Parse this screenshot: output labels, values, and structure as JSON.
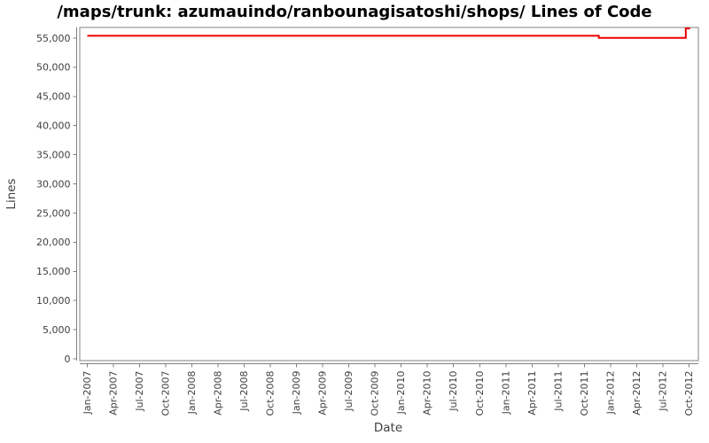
{
  "chart_data": {
    "type": "line",
    "title": "/maps/trunk: azumauindo/ranbounagisatoshi/shops/ Lines of Code",
    "xlabel": "Date",
    "ylabel": "Lines",
    "grid": false,
    "legend": false,
    "background_color": "#ffffff",
    "line_color": "#ee0000",
    "axis_color": "#808080",
    "tick_label_color": "#404040",
    "title_color": "#000000",
    "ylim": [
      0,
      56800
    ],
    "y_ticks": [
      0,
      5000,
      10000,
      15000,
      20000,
      25000,
      30000,
      35000,
      40000,
      45000,
      50000,
      55000
    ],
    "x_tick_labels": [
      "Jan-2007",
      "Apr-2007",
      "Jul-2007",
      "Oct-2007",
      "Jan-2008",
      "Apr-2008",
      "Jul-2008",
      "Oct-2008",
      "Jan-2009",
      "Apr-2009",
      "Jul-2009",
      "Oct-2009",
      "Jan-2010",
      "Apr-2010",
      "Jul-2010",
      "Oct-2010",
      "Jan-2011",
      "Apr-2011",
      "Jul-2011",
      "Oct-2011",
      "Jan-2012",
      "Apr-2012",
      "Jul-2012",
      "Oct-2012"
    ],
    "series": [
      {
        "name": "Lines of Code",
        "color": "#ee0000",
        "points": [
          {
            "date": "2007-01-01",
            "loc": 55400
          },
          {
            "date": "2011-11-21",
            "loc": 55400
          },
          {
            "date": "2011-11-21",
            "loc": 55050
          },
          {
            "date": "2012-09-20",
            "loc": 55050
          },
          {
            "date": "2012-09-20",
            "loc": 56650
          },
          {
            "date": "2012-10-05",
            "loc": 56650
          }
        ]
      }
    ]
  }
}
